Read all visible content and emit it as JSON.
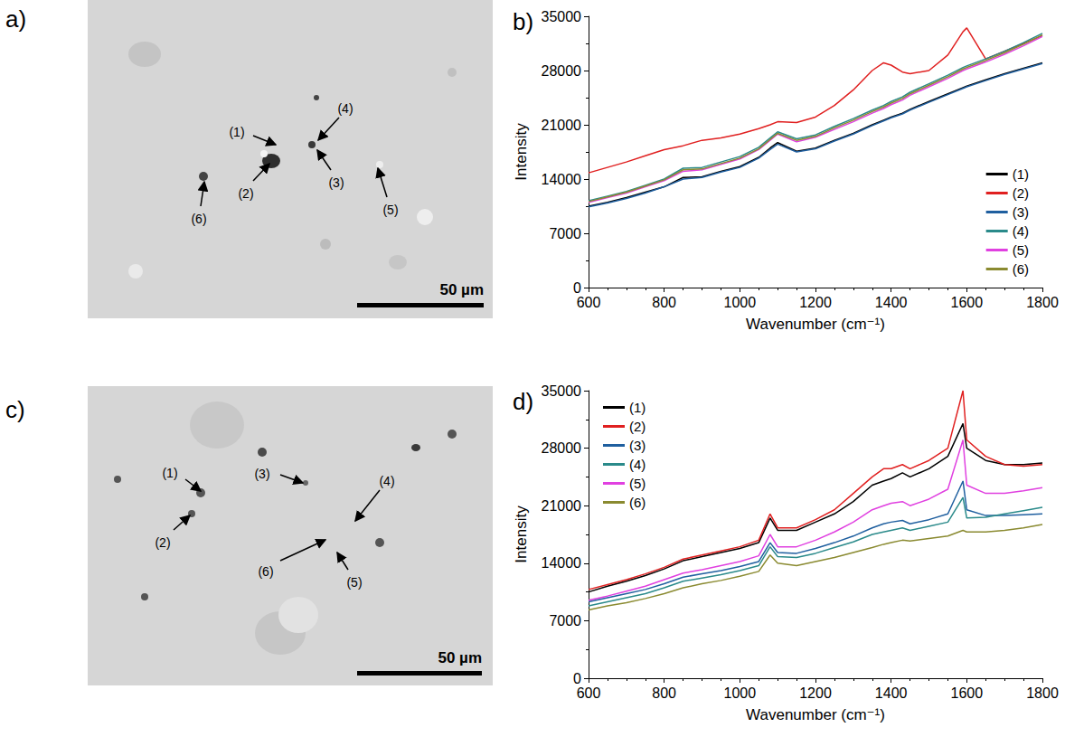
{
  "images": [
    {
      "panel": "a)",
      "labels": [
        "(1)",
        "(2)",
        "(3)",
        "(4)",
        "(5)",
        "(6)"
      ],
      "scale_bar": "50 µm"
    },
    {
      "panel": "c)",
      "labels": [
        "(1)",
        "(2)",
        "(3)",
        "(4)",
        "(5)",
        "(6)"
      ],
      "scale_bar": "50 µm"
    }
  ],
  "chart_data": [
    {
      "panel": "b)",
      "type": "line",
      "x_label": "Wavenumber (cm⁻¹)",
      "y_label": "Intensity",
      "xlim": [
        600,
        1800
      ],
      "xticks": [
        600,
        800,
        1000,
        1200,
        1400,
        1600,
        1800
      ],
      "ylim": [
        0,
        35000
      ],
      "yticks": [
        0,
        7000,
        14000,
        21000,
        28000,
        35000
      ],
      "grid": false,
      "legend": "lower right",
      "x": [
        600,
        650,
        700,
        750,
        800,
        850,
        900,
        950,
        1000,
        1050,
        1080,
        1100,
        1150,
        1200,
        1250,
        1300,
        1350,
        1380,
        1400,
        1430,
        1450,
        1500,
        1550,
        1590,
        1600,
        1650,
        1700,
        1750,
        1800
      ],
      "series": [
        {
          "name": "(1)",
          "color": "#000000",
          "values": [
            10500,
            11000,
            11600,
            12300,
            13000,
            14200,
            14300,
            15000,
            15600,
            16800,
            18000,
            18700,
            17600,
            18000,
            19000,
            19900,
            21000,
            21600,
            22000,
            22500,
            23000,
            24000,
            25000,
            25800,
            26000,
            26800,
            27600,
            28300,
            29000
          ]
        },
        {
          "name": "(2)",
          "color": "#e02020",
          "values": [
            14800,
            15500,
            16200,
            17000,
            17800,
            18300,
            19000,
            19300,
            19800,
            20500,
            21000,
            21400,
            21300,
            22000,
            23500,
            25500,
            28000,
            29000,
            28700,
            27800,
            27600,
            28000,
            30000,
            33000,
            33500,
            29500,
            30500,
            31500,
            32500
          ]
        },
        {
          "name": "(3)",
          "color": "#1f5f9f",
          "values": [
            10400,
            10900,
            11500,
            12200,
            13000,
            14000,
            14200,
            14900,
            15500,
            16700,
            17800,
            18500,
            17500,
            17900,
            18900,
            19800,
            20900,
            21500,
            21900,
            22400,
            22900,
            23900,
            24900,
            25700,
            25900,
            26700,
            27500,
            28200,
            28900
          ]
        },
        {
          "name": "(4)",
          "color": "#2a8a8a",
          "values": [
            11200,
            11800,
            12400,
            13200,
            14000,
            15400,
            15500,
            16200,
            16900,
            18100,
            19300,
            20100,
            19200,
            19700,
            20800,
            21800,
            22900,
            23500,
            24000,
            24600,
            25200,
            26300,
            27400,
            28400,
            28600,
            29500,
            30500,
            31600,
            32800
          ]
        },
        {
          "name": "(5)",
          "color": "#e040e0",
          "values": [
            11000,
            11600,
            12200,
            13000,
            13800,
            15000,
            15200,
            15900,
            16600,
            17800,
            19000,
            19800,
            18800,
            19400,
            20400,
            21400,
            22500,
            23100,
            23600,
            24200,
            24800,
            25900,
            27000,
            28000,
            28200,
            29100,
            30100,
            31200,
            32400
          ]
        },
        {
          "name": "(6)",
          "color": "#8a8a30",
          "values": [
            11100,
            11700,
            12300,
            13100,
            13900,
            15200,
            15300,
            16000,
            16700,
            17900,
            19100,
            19900,
            19000,
            19500,
            20600,
            21600,
            22700,
            23300,
            23800,
            24400,
            25000,
            26100,
            27200,
            28200,
            28400,
            29300,
            30300,
            31400,
            32600
          ]
        }
      ]
    },
    {
      "panel": "d)",
      "type": "line",
      "x_label": "Wavenumber (cm⁻¹)",
      "y_label": "Intensity",
      "xlim": [
        600,
        1800
      ],
      "xticks": [
        600,
        800,
        1000,
        1200,
        1400,
        1600,
        1800
      ],
      "ylim": [
        0,
        35000
      ],
      "yticks": [
        0,
        7000,
        14000,
        21000,
        28000,
        35000
      ],
      "grid": false,
      "legend": "upper left",
      "x": [
        600,
        650,
        700,
        750,
        800,
        850,
        900,
        950,
        1000,
        1050,
        1080,
        1100,
        1150,
        1200,
        1250,
        1300,
        1350,
        1380,
        1400,
        1430,
        1450,
        1500,
        1550,
        1590,
        1600,
        1650,
        1700,
        1750,
        1800
      ],
      "series": [
        {
          "name": "(1)",
          "color": "#000000",
          "values": [
            10500,
            11200,
            11800,
            12500,
            13300,
            14300,
            14800,
            15300,
            15800,
            16500,
            19500,
            18000,
            18000,
            19000,
            20000,
            21500,
            23500,
            24000,
            24300,
            25000,
            24500,
            25500,
            27000,
            31000,
            28000,
            26500,
            26000,
            26000,
            26200
          ]
        },
        {
          "name": "(2)",
          "color": "#e02020",
          "values": [
            10800,
            11400,
            12000,
            12700,
            13500,
            14500,
            15000,
            15500,
            16000,
            16800,
            20000,
            18300,
            18300,
            19300,
            20500,
            22500,
            24500,
            25500,
            25500,
            26000,
            25500,
            26500,
            28000,
            35000,
            29000,
            27000,
            26000,
            25800,
            26000
          ]
        },
        {
          "name": "(3)",
          "color": "#1f5f9f",
          "values": [
            9300,
            9800,
            10300,
            10800,
            11500,
            12300,
            12700,
            13100,
            13600,
            14200,
            16500,
            15300,
            15200,
            15800,
            16500,
            17300,
            18300,
            18800,
            19000,
            19200,
            18800,
            19300,
            20000,
            24000,
            20500,
            19800,
            19800,
            19900,
            20000
          ]
        },
        {
          "name": "(4)",
          "color": "#2a8a8a",
          "values": [
            8800,
            9300,
            9800,
            10300,
            11000,
            11800,
            12200,
            12600,
            13100,
            13700,
            16000,
            14800,
            14700,
            15200,
            15900,
            16600,
            17500,
            17800,
            18000,
            18300,
            18000,
            18500,
            19000,
            22000,
            19500,
            19600,
            20000,
            20400,
            20800
          ]
        },
        {
          "name": "(5)",
          "color": "#e040e0",
          "values": [
            9500,
            10000,
            10600,
            11200,
            12000,
            12800,
            13200,
            13700,
            14200,
            14900,
            17500,
            16000,
            16000,
            16800,
            17800,
            19000,
            20500,
            21000,
            21300,
            21500,
            21000,
            21800,
            23000,
            29000,
            23500,
            22500,
            22500,
            22800,
            23200
          ]
        },
        {
          "name": "(6)",
          "color": "#8a8a30",
          "values": [
            8300,
            8800,
            9200,
            9700,
            10300,
            11000,
            11500,
            11900,
            12400,
            13000,
            15000,
            14000,
            13700,
            14200,
            14700,
            15300,
            15900,
            16300,
            16500,
            16800,
            16700,
            17000,
            17300,
            18000,
            17800,
            17800,
            18000,
            18300,
            18700
          ]
        }
      ]
    }
  ]
}
